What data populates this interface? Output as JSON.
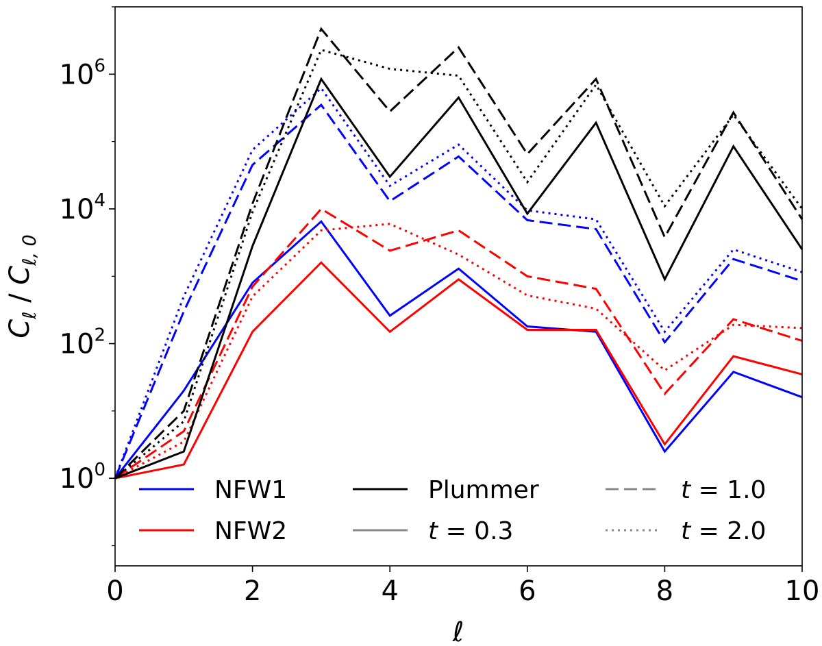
{
  "chart_data": {
    "type": "line",
    "title": "",
    "xlabel": "ℓ",
    "ylabel_main": "C",
    "ylabel_sub": "ℓ",
    "ylabel_sep": " / ",
    "ylabel_sub2": "ℓ, 0",
    "yscale": "log",
    "xlim": [
      0,
      10
    ],
    "ylim_log10": [
      -1.3,
      7.0
    ],
    "x": [
      0,
      1,
      2,
      3,
      4,
      5,
      6,
      7,
      8,
      9,
      10
    ],
    "x_ticks": [
      {
        "value": 0,
        "label": "0"
      },
      {
        "value": 2,
        "label": "2"
      },
      {
        "value": 4,
        "label": "4"
      },
      {
        "value": 6,
        "label": "6"
      },
      {
        "value": 8,
        "label": "8"
      },
      {
        "value": 10,
        "label": "10"
      }
    ],
    "y_ticks": [
      {
        "exp": 0,
        "base": "10",
        "sup": "0"
      },
      {
        "exp": 2,
        "base": "10",
        "sup": "2"
      },
      {
        "exp": 4,
        "base": "10",
        "sup": "4"
      },
      {
        "exp": 6,
        "base": "10",
        "sup": "6"
      }
    ],
    "series": [
      {
        "name": "NFW1 t=0.3",
        "model": "NFW1",
        "color": "#0000ff",
        "style": "solid",
        "values": [
          1,
          20,
          800,
          6500,
          260,
          1300,
          180,
          150,
          2.5,
          38,
          16
        ]
      },
      {
        "name": "NFW1 t=1.0",
        "model": "NFW1",
        "color": "#0000ff",
        "style": "dashed",
        "values": [
          1,
          300,
          45000,
          350000,
          13000,
          60000,
          6800,
          5000,
          105,
          1800,
          850
        ]
      },
      {
        "name": "NFW1 t=2.0",
        "model": "NFW1",
        "color": "#0000ff",
        "style": "dotted",
        "values": [
          1,
          500,
          75000,
          620000,
          22000,
          90000,
          9500,
          7000,
          150,
          2500,
          1150
        ]
      },
      {
        "name": "NFW2 t=0.3",
        "model": "NFW2",
        "color": "#ff0000",
        "style": "solid",
        "values": [
          1,
          1.6,
          150,
          1600,
          150,
          900,
          160,
          160,
          3.2,
          65,
          35
        ]
      },
      {
        "name": "NFW2 t=1.0",
        "model": "NFW2",
        "color": "#ff0000",
        "style": "dashed",
        "values": [
          1,
          5,
          700,
          10000,
          2400,
          4800,
          1000,
          650,
          18,
          230,
          110
        ]
      },
      {
        "name": "NFW2 t=2.0",
        "model": "NFW2",
        "color": "#ff0000",
        "style": "dotted",
        "values": [
          1,
          3.5,
          500,
          4800,
          6000,
          2100,
          520,
          330,
          40,
          190,
          170
        ]
      },
      {
        "name": "Plummer t=0.3",
        "model": "Plummer",
        "color": "#000000",
        "style": "solid",
        "values": [
          1,
          2.5,
          2800,
          850000,
          30000,
          450000,
          8500,
          190000,
          900,
          85000,
          2500
        ]
      },
      {
        "name": "Plummer t=1.0",
        "model": "Plummer",
        "color": "#000000",
        "style": "dashed",
        "values": [
          1,
          10,
          12000,
          4700000,
          280000,
          2500000,
          65000,
          850000,
          3800,
          270000,
          7000
        ]
      },
      {
        "name": "Plummer t=2.0",
        "model": "Plummer",
        "color": "#000000",
        "style": "dotted",
        "values": [
          1,
          7,
          9000,
          2300000,
          1200000,
          950000,
          25000,
          700000,
          11000,
          250000,
          10000
        ]
      }
    ],
    "legend": {
      "placement": "lower-center",
      "entries": [
        {
          "label": "NFW1",
          "color": "#0000ff",
          "style": "solid"
        },
        {
          "label": "NFW2",
          "color": "#ff0000",
          "style": "solid"
        },
        {
          "label": "Plummer",
          "color": "#000000",
          "style": "solid"
        },
        {
          "label": "t = 0.3",
          "color": "#888888",
          "style": "solid"
        },
        {
          "label": "t = 1.0",
          "color": "#888888",
          "style": "dashed"
        },
        {
          "label": "t = 2.0",
          "color": "#888888",
          "style": "dotted"
        }
      ]
    }
  }
}
